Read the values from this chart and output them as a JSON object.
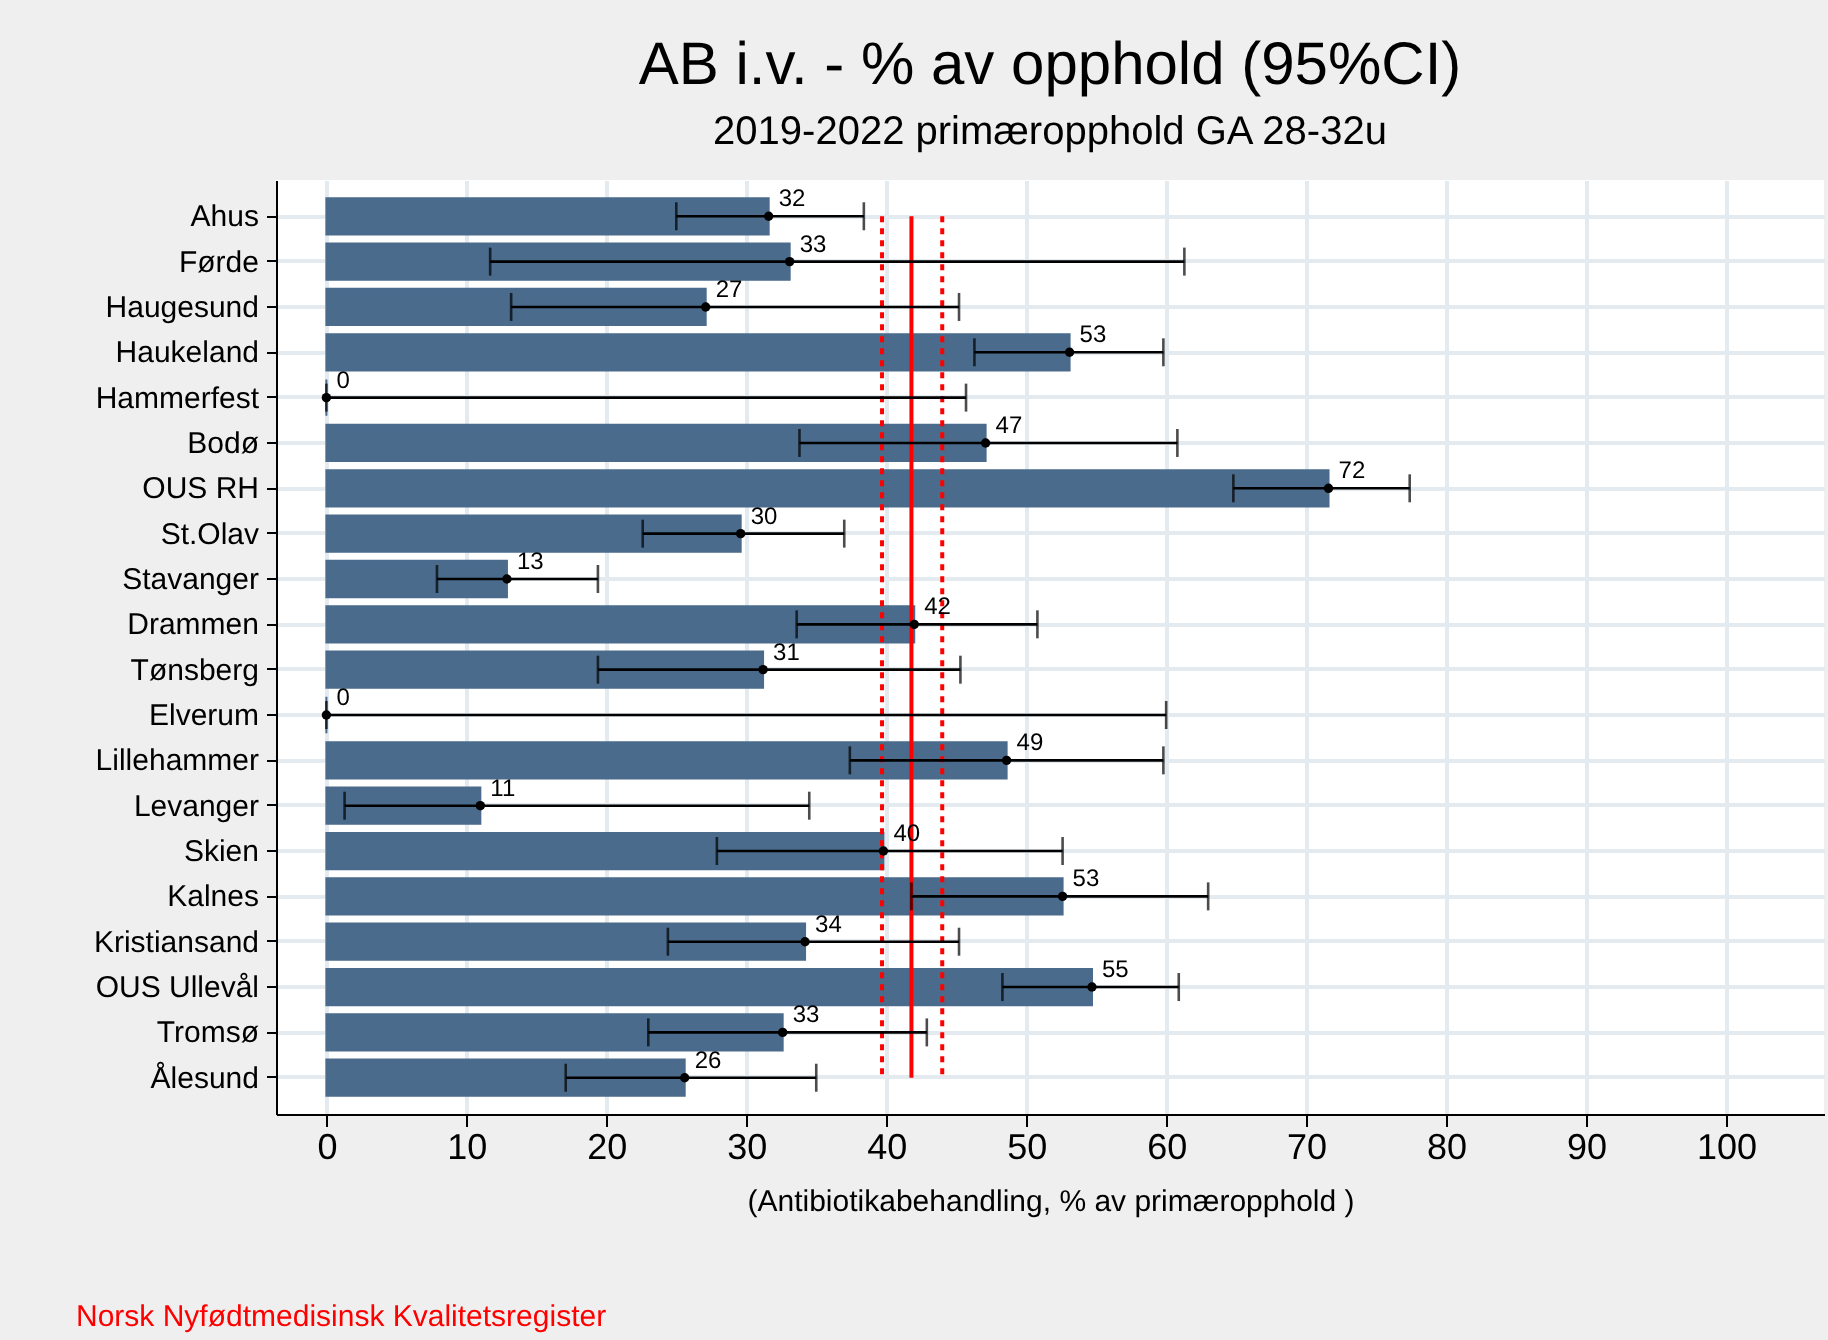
{
  "chart_data": {
    "type": "bar",
    "orientation": "horizontal",
    "title": "AB i.v. - % av opphold (95%CI)",
    "subtitle": "2019-2022 primæropphold GA 28-32u",
    "xlabel": "(Antibiotikabehandling, % av primæropphold )",
    "categories": [
      "Ahus",
      "Førde",
      "Haugesund",
      "Haukeland",
      "Hammerfest",
      "Bodø",
      "OUS RH",
      "St.Olav",
      "Stavanger",
      "Drammen",
      "Tønsberg",
      "Elverum",
      "Lillehammer",
      "Levanger",
      "Skien",
      "Kalnes",
      "Kristiansand",
      "OUS Ullevål",
      "Tromsø",
      "Ålesund"
    ],
    "values": [
      31.6,
      33.1,
      27.1,
      53.1,
      0,
      47.1,
      71.6,
      29.6,
      12.9,
      42.0,
      31.2,
      0,
      48.6,
      11.0,
      39.8,
      52.6,
      34.2,
      54.7,
      32.6,
      25.6
    ],
    "value_labels": [
      "32",
      "33",
      "27",
      "53",
      "0",
      "47",
      "72",
      "30",
      "13",
      "42",
      "31",
      "0",
      "49",
      "11",
      "40",
      "53",
      "34",
      "55",
      "33",
      "26"
    ],
    "errors": [
      [
        25.0,
        38.4
      ],
      [
        11.7,
        61.3
      ],
      [
        13.2,
        45.2
      ],
      [
        46.3,
        59.8
      ],
      [
        0,
        45.7
      ],
      [
        33.8,
        60.8
      ],
      [
        64.8,
        77.4
      ],
      [
        22.6,
        37.0
      ],
      [
        7.9,
        19.4
      ],
      [
        33.6,
        50.8
      ],
      [
        19.4,
        45.3
      ],
      [
        0,
        60.0
      ],
      [
        37.4,
        59.8
      ],
      [
        1.3,
        34.5
      ],
      [
        27.9,
        52.6
      ],
      [
        41.8,
        63.0
      ],
      [
        24.4,
        45.2
      ],
      [
        48.3,
        60.9
      ],
      [
        23.0,
        42.9
      ],
      [
        17.1,
        35.0
      ]
    ],
    "color": "#4a6b8c",
    "series": [
      {
        "type": "scatter",
        "color": "#000000",
        "values": [
          31.6,
          33.1,
          27.1,
          53.1,
          0,
          47.1,
          71.6,
          29.6,
          12.9,
          42.0,
          31.2,
          0,
          48.6,
          11.0,
          39.8,
          52.6,
          34.2,
          54.7,
          32.6,
          25.6
        ]
      }
    ],
    "marker": "circle",
    "grid": true,
    "xlim": [
      -3.6,
      107
    ],
    "xticks": [
      0,
      10,
      20,
      30,
      40,
      50,
      60,
      70,
      80,
      90,
      100
    ],
    "ref_lines": [
      {
        "axis": "x",
        "value": 41.8,
        "color": "#ff0000",
        "line_style": "solid"
      },
      {
        "axis": "x",
        "value": 39.7,
        "color": "#ff0000",
        "line_style": "dotted"
      },
      {
        "axis": "x",
        "value": 44.0,
        "color": "#ff0000",
        "line_style": "dotted"
      }
    ],
    "annotations": [
      "Norsk Nyfødtmedisinsk Kvalitetsregister"
    ]
  }
}
